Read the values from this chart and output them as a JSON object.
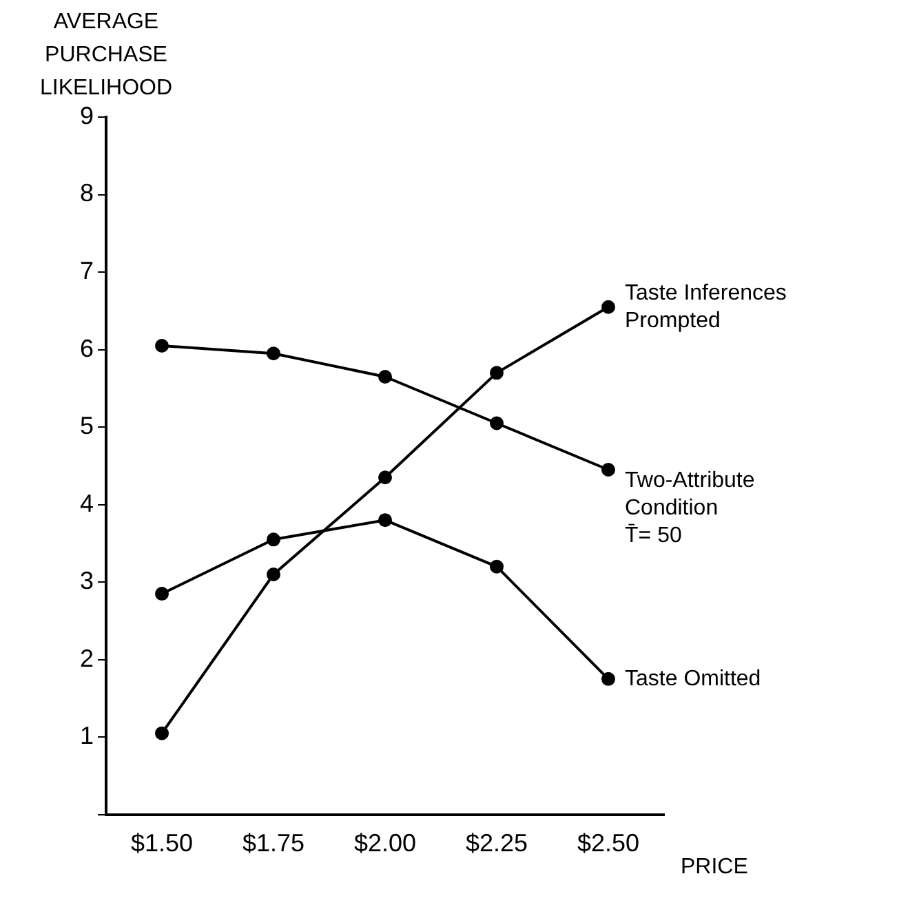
{
  "chart_data": {
    "type": "line",
    "xlabel": "PRICE",
    "ylabel": "AVERAGE PURCHASE LIKELIHOOD",
    "categories": [
      "$1.50",
      "$1.75",
      "$2.00",
      "$2.25",
      "$2.50"
    ],
    "series": [
      {
        "name": "Taste Inferences\nPrompted",
        "color": "#000000",
        "values": [
          1.05,
          3.1,
          4.35,
          5.7,
          6.55
        ]
      },
      {
        "name": "Two-Attribute\nCondition\nT̄= 50",
        "color": "#000000",
        "values": [
          6.05,
          5.95,
          5.65,
          5.05,
          4.45
        ]
      },
      {
        "name": "Taste Omitted",
        "color": "#000000",
        "values": [
          2.85,
          3.55,
          3.8,
          3.2,
          1.75
        ]
      }
    ],
    "ylim": [
      0,
      9
    ],
    "yticks": [
      {
        "value": 0,
        "label": null
      },
      1,
      2,
      3,
      4,
      5,
      6,
      7,
      8,
      9
    ],
    "grid": false,
    "legend": false,
    "marker": "circle",
    "line_style": "solid"
  }
}
